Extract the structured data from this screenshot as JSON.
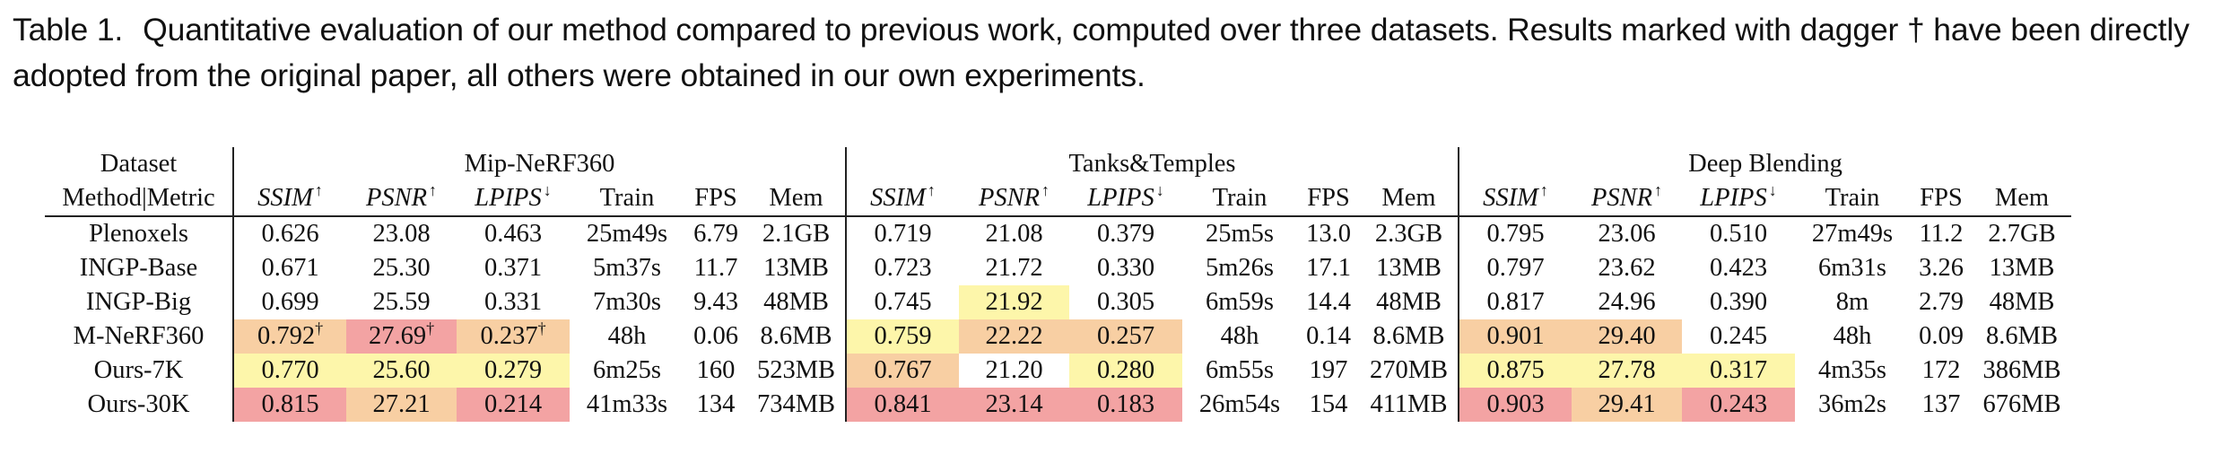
{
  "caption": {
    "label": "Table 1.",
    "text": "Quantitative evaluation of our method compared to previous work, computed over three datasets. Results marked with dagger † have been directly adopted from the original paper, all others were obtained in our own experiments."
  },
  "table": {
    "corner_top": "Dataset",
    "corner_bottom": "Method|Metric",
    "datasets": [
      "Mip-NeRF360",
      "Tanks&Temples",
      "Deep Blending"
    ],
    "metrics": [
      {
        "name": "SSIM",
        "arrow": "↑"
      },
      {
        "name": "PSNR",
        "arrow": "↑"
      },
      {
        "name": "LPIPS",
        "arrow": "↓"
      },
      {
        "name": "Train",
        "arrow": ""
      },
      {
        "name": "FPS",
        "arrow": ""
      },
      {
        "name": "Mem",
        "arrow": ""
      }
    ],
    "rows": [
      {
        "method": "Plenoxels",
        "values": [
          [
            "0.626",
            "23.08",
            "0.463",
            "25m49s",
            "6.79",
            "2.1GB"
          ],
          [
            "0.719",
            "21.08",
            "0.379",
            "25m5s",
            "13.0",
            "2.3GB"
          ],
          [
            "0.795",
            "23.06",
            "0.510",
            "27m49s",
            "11.2",
            "2.7GB"
          ]
        ]
      },
      {
        "method": "INGP-Base",
        "values": [
          [
            "0.671",
            "25.30",
            "0.371",
            "5m37s",
            "11.7",
            "13MB"
          ],
          [
            "0.723",
            "21.72",
            "0.330",
            "5m26s",
            "17.1",
            "13MB"
          ],
          [
            "0.797",
            "23.62",
            "0.423",
            "6m31s",
            "3.26",
            "13MB"
          ]
        ]
      },
      {
        "method": "INGP-Big",
        "values": [
          [
            "0.699",
            "25.59",
            "0.331",
            "7m30s",
            "9.43",
            "48MB"
          ],
          [
            "0.745",
            "21.92",
            "0.305",
            "6m59s",
            "14.4",
            "48MB"
          ],
          [
            "0.817",
            "24.96",
            "0.390",
            "8m",
            "2.79",
            "48MB"
          ]
        ]
      },
      {
        "method": "M-NeRF360",
        "values": [
          [
            "0.792",
            "27.69",
            "0.237",
            "48h",
            "0.06",
            "8.6MB"
          ],
          [
            "0.759",
            "22.22",
            "0.257",
            "48h",
            "0.14",
            "8.6MB"
          ],
          [
            "0.901",
            "29.40",
            "0.245",
            "48h",
            "0.09",
            "8.6MB"
          ]
        ]
      },
      {
        "method": "Ours-7K",
        "values": [
          [
            "0.770",
            "25.60",
            "0.279",
            "6m25s",
            "160",
            "523MB"
          ],
          [
            "0.767",
            "21.20",
            "0.280",
            "6m55s",
            "197",
            "270MB"
          ],
          [
            "0.875",
            "27.78",
            "0.317",
            "4m35s",
            "172",
            "386MB"
          ]
        ]
      },
      {
        "method": "Ours-30K",
        "values": [
          [
            "0.815",
            "27.21",
            "0.214",
            "41m33s",
            "134",
            "734MB"
          ],
          [
            "0.841",
            "23.14",
            "0.183",
            "26m54s",
            "154",
            "411MB"
          ],
          [
            "0.903",
            "29.41",
            "0.243",
            "36m2s",
            "137",
            "676MB"
          ]
        ]
      }
    ],
    "dagger_symbol": "†",
    "dagger_cells": [
      [
        3,
        0,
        0
      ],
      [
        3,
        0,
        1
      ],
      [
        3,
        0,
        2
      ]
    ],
    "highlight_colors": {
      "red": "#f3a3a3",
      "orange": "#f8cfa3",
      "yellow": "#fdf6aa"
    },
    "highlights": {
      "red": [
        [
          3,
          0,
          1
        ],
        [
          5,
          0,
          0
        ],
        [
          5,
          0,
          2
        ],
        [
          5,
          1,
          0
        ],
        [
          5,
          1,
          1
        ],
        [
          5,
          1,
          2
        ],
        [
          5,
          2,
          0
        ],
        [
          5,
          2,
          2
        ]
      ],
      "orange": [
        [
          3,
          0,
          0
        ],
        [
          3,
          0,
          2
        ],
        [
          3,
          1,
          1
        ],
        [
          3,
          1,
          2
        ],
        [
          3,
          2,
          0
        ],
        [
          3,
          2,
          1
        ],
        [
          4,
          1,
          0
        ],
        [
          5,
          0,
          1
        ],
        [
          5,
          2,
          1
        ]
      ],
      "yellow": [
        [
          2,
          1,
          1
        ],
        [
          3,
          1,
          0
        ],
        [
          4,
          0,
          0
        ],
        [
          4,
          0,
          1
        ],
        [
          4,
          0,
          2
        ],
        [
          4,
          1,
          2
        ],
        [
          4,
          2,
          0
        ],
        [
          4,
          2,
          1
        ],
        [
          4,
          2,
          2
        ]
      ]
    }
  }
}
